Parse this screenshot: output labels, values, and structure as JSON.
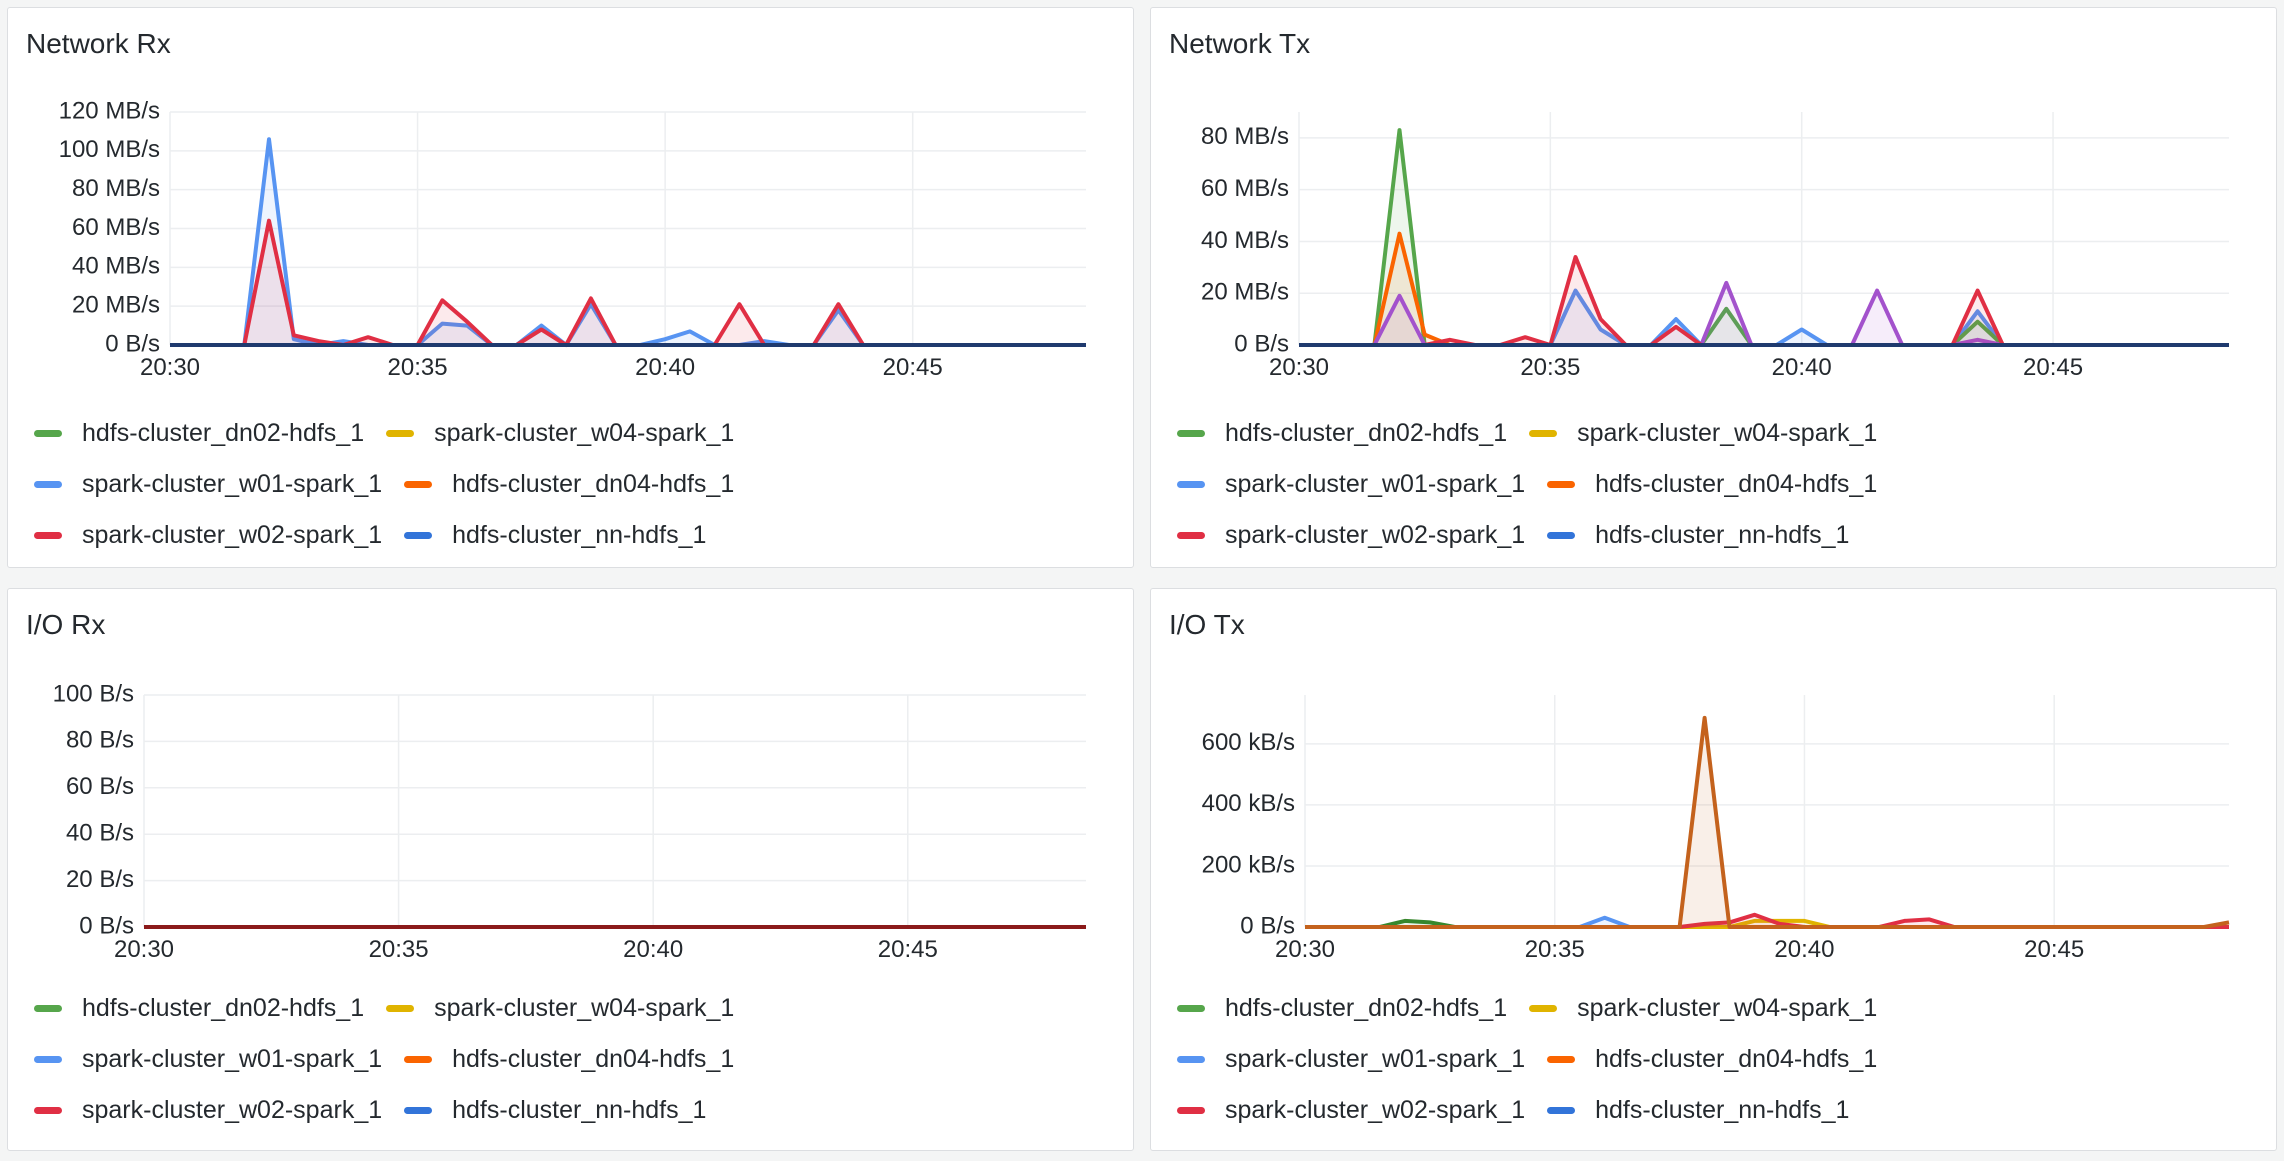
{
  "colors": {
    "hdfs-cluster_dn02-hdfs_1": "#56a64b",
    "spark-cluster_w04-spark_1": "#e0b400",
    "spark-cluster_w01-spark_1": "#5794f2",
    "hdfs-cluster_dn04-hdfs_1": "#fa6400",
    "spark-cluster_w02-spark_1": "#e02f44",
    "hdfs-cluster_nn-hdfs_1": "#3274d9",
    "purple-series": "#a352cc",
    "baseline": "#1f3a6e",
    "io-brown": "#c4621d"
  },
  "legend": [
    [
      "hdfs-cluster_dn02-hdfs_1",
      "spark-cluster_w04-spark_1"
    ],
    [
      "spark-cluster_w01-spark_1",
      "hdfs-cluster_dn04-hdfs_1"
    ],
    [
      "spark-cluster_w02-spark_1",
      "hdfs-cluster_nn-hdfs_1"
    ]
  ],
  "panels": {
    "net_rx": {
      "title": "Network Rx"
    },
    "net_tx": {
      "title": "Network Tx"
    },
    "io_rx": {
      "title": "I/O Rx"
    },
    "io_tx": {
      "title": "I/O Tx"
    }
  },
  "chart_data": [
    {
      "type": "area",
      "title": "Network Rx",
      "x_ticks": [
        "20:30",
        "20:35",
        "20:40",
        "20:45"
      ],
      "x_range_min": [
        0,
        18.5
      ],
      "y_ticks": [
        "0 B/s",
        "20 MB/s",
        "40 MB/s",
        "60 MB/s",
        "80 MB/s",
        "100 MB/s",
        "120 MB/s"
      ],
      "ylim": [
        0,
        120
      ],
      "y_unit": "MB/s",
      "series": [
        {
          "name": "spark-cluster_w01-spark_1",
          "color": "#5794f2",
          "x": [
            0,
            1.5,
            2,
            2.5,
            3,
            3.5,
            4,
            4.5,
            5,
            5.5,
            6,
            6.5,
            7,
            7.5,
            8,
            8.5,
            9,
            9.5,
            10,
            10.5,
            11,
            11.5,
            12,
            12.5,
            13,
            13.5,
            14,
            18.5
          ],
          "y": [
            0,
            0,
            106,
            3,
            0,
            2,
            0,
            0,
            0,
            11,
            10,
            0,
            0,
            10,
            0,
            21,
            0,
            0,
            3,
            7,
            0,
            0,
            2,
            0,
            0,
            18,
            0,
            0
          ]
        },
        {
          "name": "spark-cluster_w02-spark_1",
          "color": "#e02f44",
          "x": [
            0,
            1.5,
            2,
            2.5,
            3,
            3.5,
            4,
            4.5,
            5,
            5.5,
            6,
            6.5,
            7,
            7.5,
            8,
            8.5,
            9,
            9.5,
            10,
            10.5,
            11,
            11.5,
            12,
            12.5,
            13,
            13.5,
            14,
            18.5
          ],
          "y": [
            0,
            0,
            64,
            5,
            2,
            0,
            4,
            0,
            0,
            23,
            12,
            0,
            0,
            8,
            0,
            24,
            0,
            0,
            0,
            0,
            0,
            21,
            0,
            0,
            0,
            21,
            0,
            0
          ]
        },
        {
          "name": "hdfs-cluster_nn-hdfs_1",
          "color": "#1f3a6e",
          "x": [
            0,
            18.5
          ],
          "y": [
            0,
            0
          ]
        }
      ]
    },
    {
      "type": "area",
      "title": "Network Tx",
      "x_ticks": [
        "20:30",
        "20:35",
        "20:40",
        "20:45"
      ],
      "x_range_min": [
        0,
        18.5
      ],
      "y_ticks": [
        "0 B/s",
        "20 MB/s",
        "40 MB/s",
        "60 MB/s",
        "80 MB/s"
      ],
      "ylim": [
        0,
        90
      ],
      "y_unit": "MB/s",
      "series": [
        {
          "name": "hdfs-cluster_dn02-hdfs_1",
          "color": "#56a64b",
          "x": [
            0,
            1.5,
            2,
            2.5,
            3,
            18.5
          ],
          "y": [
            0,
            0,
            83,
            0,
            0,
            0
          ]
        },
        {
          "name": "hdfs-cluster_dn04-hdfs_1",
          "color": "#fa6400",
          "x": [
            0,
            1.5,
            2,
            2.5,
            3,
            18.5
          ],
          "y": [
            0,
            0,
            43,
            4,
            0,
            0
          ]
        },
        {
          "name": "spark-cluster_w01-spark_1",
          "color": "#5794f2",
          "x": [
            0,
            5,
            5.5,
            6,
            6.5,
            7,
            7.5,
            8,
            8.5,
            9,
            9.5,
            10,
            10.5,
            11,
            11.5,
            12,
            12.5,
            13,
            13.5,
            14,
            18.5
          ],
          "y": [
            0,
            0,
            21,
            6,
            0,
            0,
            10,
            0,
            0,
            0,
            0,
            6,
            0,
            0,
            0,
            0,
            0,
            0,
            13,
            0,
            0
          ]
        },
        {
          "name": "hdfs-cluster_dn02-hdfs_1",
          "color": "#56a64b",
          "x": [
            0,
            8,
            8.5,
            9,
            13,
            13.5,
            14,
            18.5
          ],
          "y": [
            0,
            0,
            14,
            0,
            0,
            9,
            0,
            0
          ]
        },
        {
          "name": "",
          "color": "#a352cc",
          "x": [
            0,
            1.5,
            2,
            2.5,
            8,
            8.5,
            9,
            11,
            11.5,
            12,
            13,
            13.5,
            14,
            18.5
          ],
          "y": [
            0,
            0,
            19,
            0,
            0,
            24,
            0,
            0,
            21,
            0,
            0,
            2,
            0,
            0
          ]
        },
        {
          "name": "spark-cluster_w02-spark_1",
          "color": "#e02f44",
          "x": [
            0,
            2.5,
            3,
            3.5,
            4,
            4.5,
            5,
            5.5,
            6,
            6.5,
            7,
            7.5,
            8,
            13,
            13.5,
            14,
            18.5
          ],
          "y": [
            0,
            0,
            2,
            0,
            0,
            3,
            0,
            34,
            10,
            0,
            0,
            7,
            0,
            0,
            21,
            0,
            0
          ]
        },
        {
          "name": "hdfs-cluster_nn-hdfs_1",
          "color": "#1f3a6e",
          "x": [
            0,
            18.5
          ],
          "y": [
            0,
            0
          ]
        }
      ]
    },
    {
      "type": "area",
      "title": "I/O Rx",
      "x_ticks": [
        "20:30",
        "20:35",
        "20:40",
        "20:45"
      ],
      "x_range_min": [
        0,
        18.5
      ],
      "y_ticks": [
        "0 B/s",
        "20 B/s",
        "40 B/s",
        "60 B/s",
        "80 B/s",
        "100 B/s"
      ],
      "ylim": [
        0,
        100
      ],
      "y_unit": "B/s",
      "series": [
        {
          "name": "spark-cluster_w02-spark_1",
          "color": "#8b1a1a",
          "x": [
            0,
            18.5
          ],
          "y": [
            0,
            0
          ]
        }
      ]
    },
    {
      "type": "area",
      "title": "I/O Tx",
      "x_ticks": [
        "20:30",
        "20:35",
        "20:40",
        "20:45"
      ],
      "x_range_min": [
        0,
        18.5
      ],
      "y_ticks": [
        "0 B/s",
        "200 kB/s",
        "400 kB/s",
        "600 kB/s"
      ],
      "ylim": [
        0,
        760
      ],
      "y_unit": "kB/s",
      "series": [
        {
          "name": "hdfs-cluster_dn02-hdfs_1",
          "color": "#37872d",
          "x": [
            0,
            1.5,
            2,
            2.5,
            3,
            18.5
          ],
          "y": [
            0,
            0,
            20,
            15,
            0,
            0
          ]
        },
        {
          "name": "spark-cluster_w01-spark_1",
          "color": "#5794f2",
          "x": [
            0,
            5.5,
            6,
            6.5,
            18.5
          ],
          "y": [
            0,
            0,
            30,
            0,
            0
          ]
        },
        {
          "name": "spark-cluster_w04-spark_1",
          "color": "#e0b400",
          "x": [
            0,
            8.5,
            9,
            9.5,
            10,
            10.5,
            18.5
          ],
          "y": [
            0,
            0,
            20,
            20,
            20,
            0,
            0
          ]
        },
        {
          "name": "spark-cluster_w02-spark_1",
          "color": "#e02f44",
          "x": [
            0,
            7.5,
            8,
            8.5,
            9,
            9.5,
            10,
            11.5,
            12,
            12.5,
            13,
            18.5
          ],
          "y": [
            0,
            0,
            10,
            15,
            40,
            10,
            0,
            0,
            20,
            25,
            0,
            0
          ]
        },
        {
          "name": "",
          "color": "#c4621d",
          "x": [
            0,
            7.5,
            8,
            8.5,
            18,
            18.5
          ],
          "y": [
            0,
            0,
            685,
            0,
            0,
            15
          ]
        }
      ]
    }
  ]
}
